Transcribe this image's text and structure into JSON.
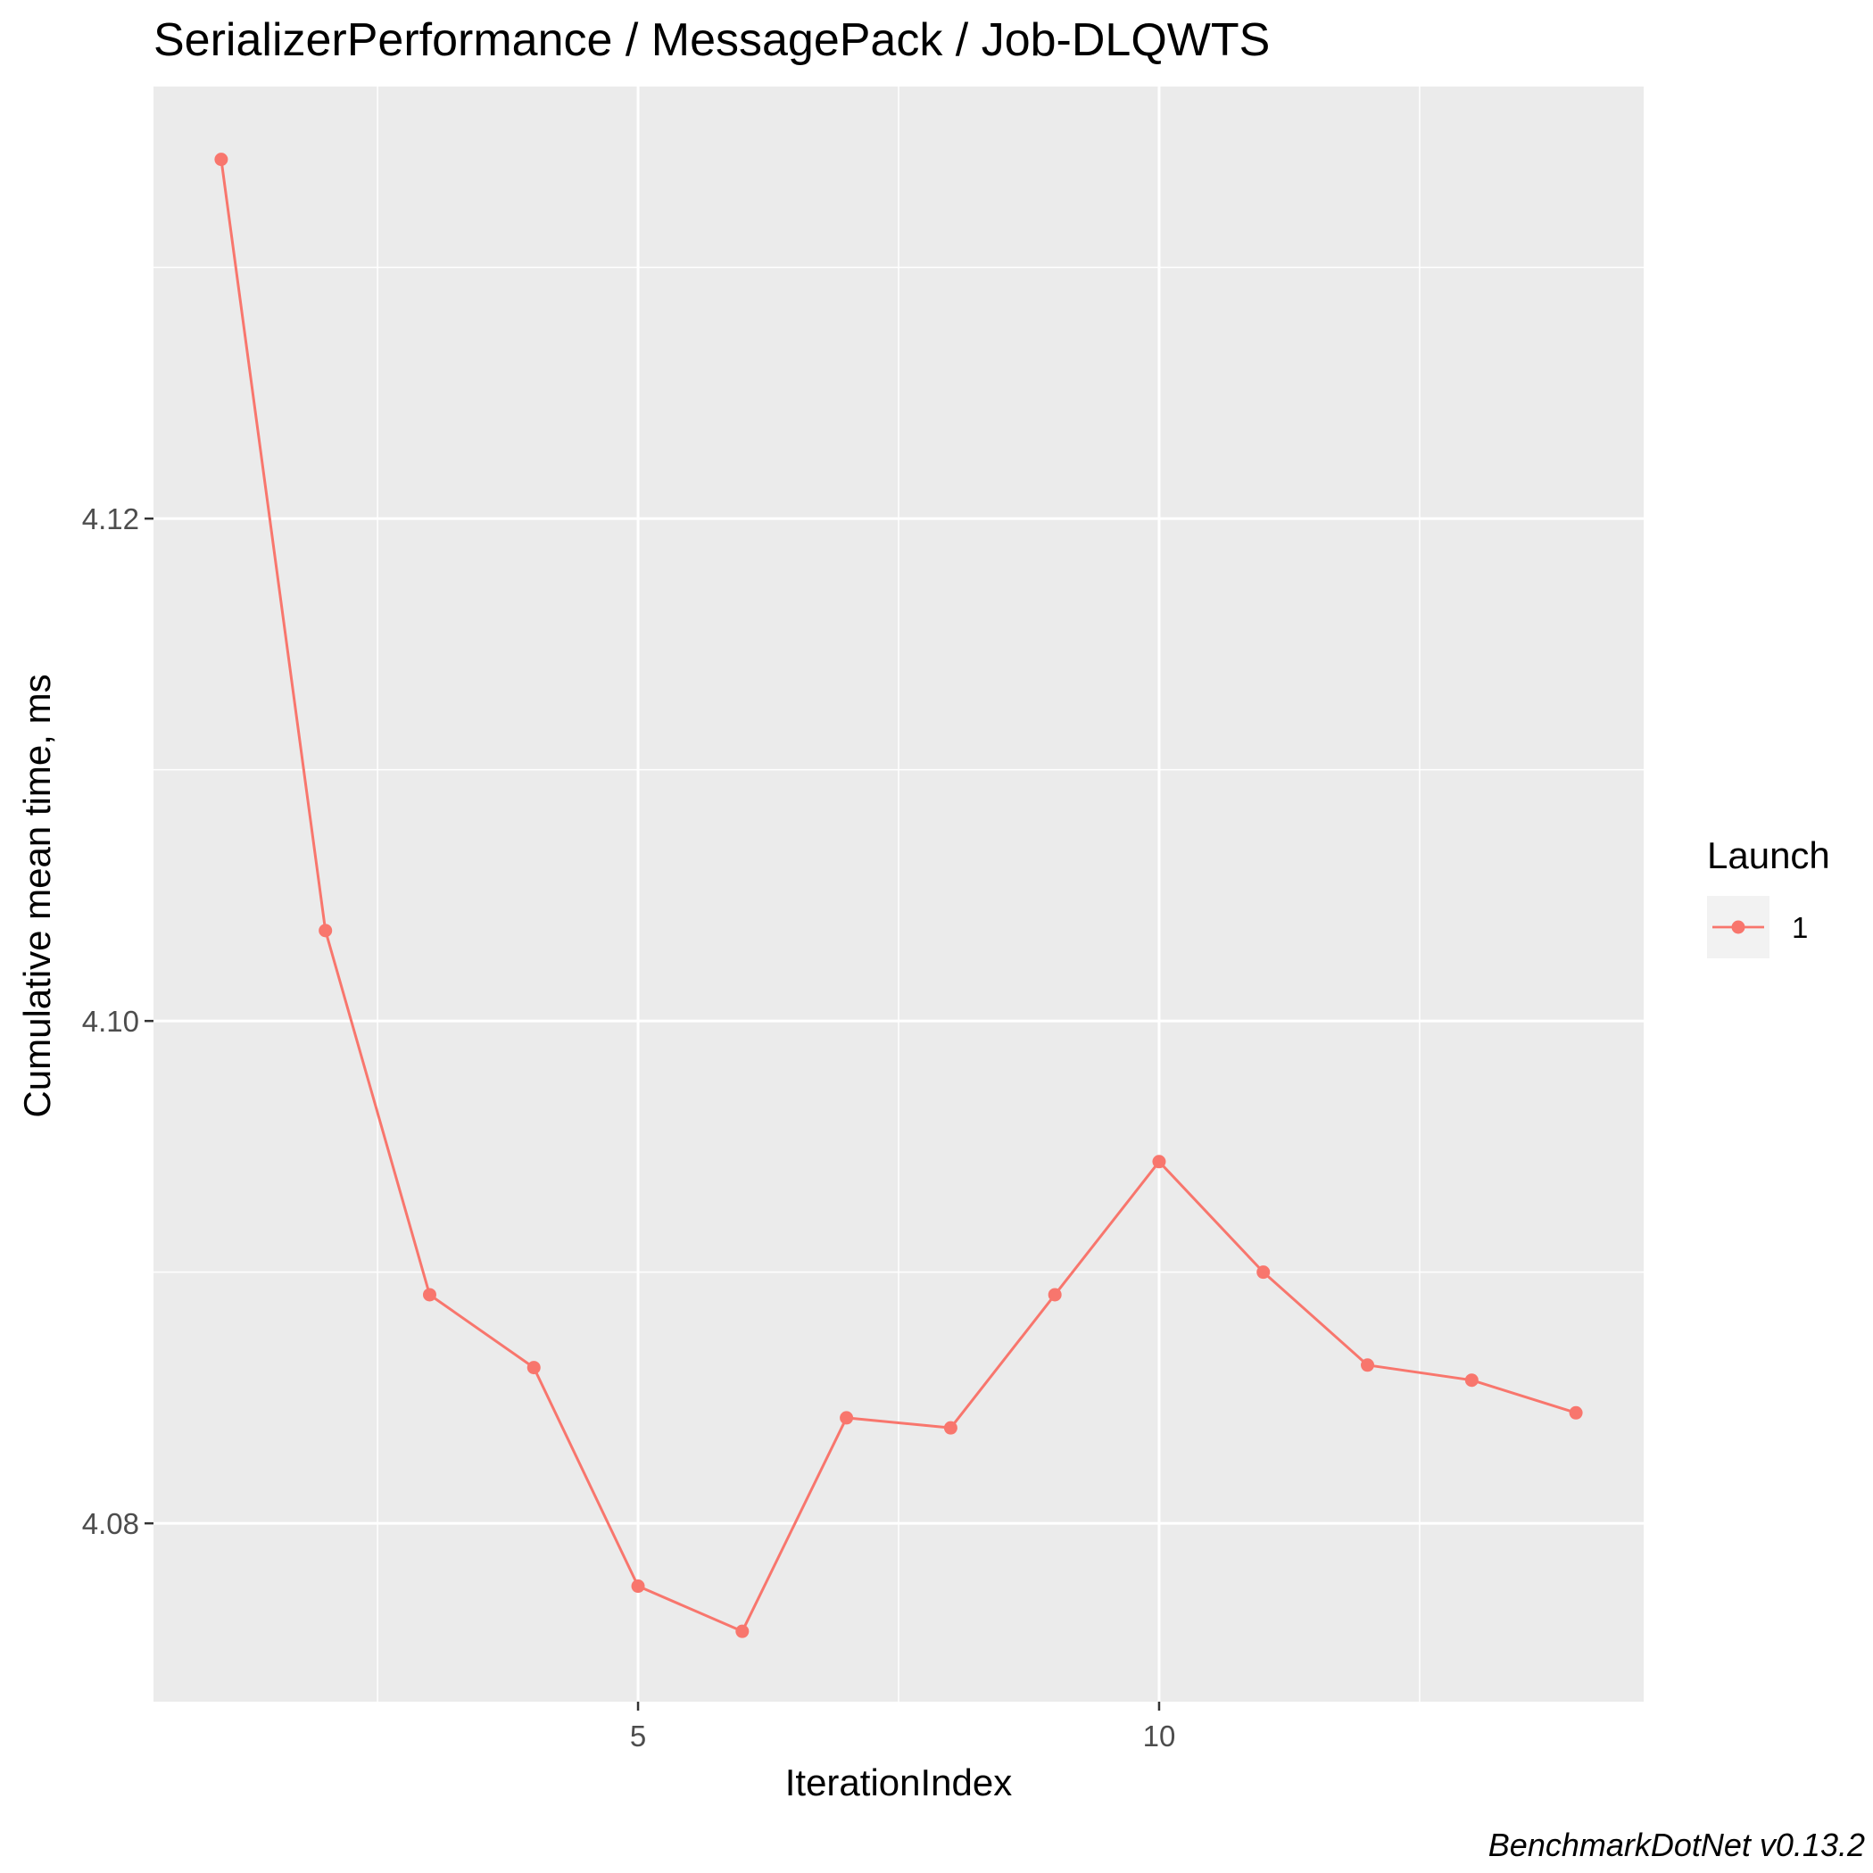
{
  "chart_data": {
    "type": "line",
    "title": "SerializerPerformance / MessagePack / Job-DLQWTS",
    "xlabel": "IterationIndex",
    "ylabel": "Cumulative mean time, ms",
    "caption": "BenchmarkDotNet v0.13.2",
    "x": [
      1,
      2,
      3,
      4,
      5,
      6,
      7,
      8,
      9,
      10,
      11,
      12,
      13,
      14
    ],
    "series": [
      {
        "name": "1",
        "color": "#F8766D",
        "values": [
          4.1343,
          4.1036,
          4.0891,
          4.0862,
          4.0775,
          4.0757,
          4.0842,
          4.0838,
          4.0891,
          4.0944,
          4.09,
          4.0863,
          4.0857,
          4.0844
        ]
      }
    ],
    "xlim": [
      0.35,
      14.65
    ],
    "ylim": [
      4.0729,
      4.1372
    ],
    "x_ticks": [
      5,
      10
    ],
    "x_tick_labels": [
      "5",
      "10"
    ],
    "x_minor_ticks": [
      2.5,
      7.5,
      12.5
    ],
    "y_ticks": [
      4.08,
      4.1,
      4.12
    ],
    "y_tick_labels": [
      "4.08",
      "4.10",
      "4.12"
    ],
    "y_minor_ticks": [
      4.09,
      4.11,
      4.13
    ],
    "grid": true,
    "legend": {
      "title": "Launch",
      "position": "right"
    },
    "panel_background": "#EBEBEB",
    "grid_color": "#FFFFFF"
  }
}
